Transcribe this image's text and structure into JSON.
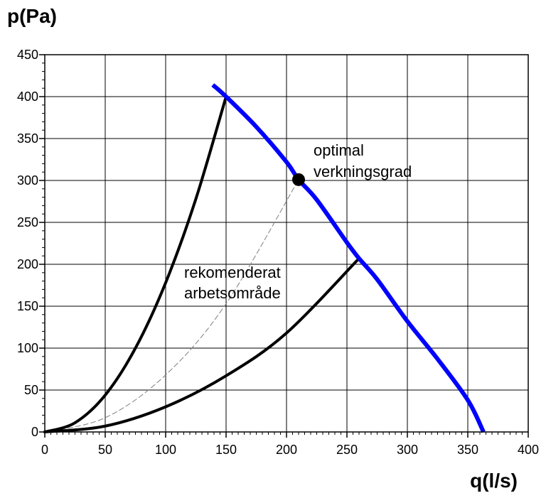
{
  "chart_data": {
    "type": "line",
    "title": "",
    "xlabel": "q(l/s)",
    "ylabel": "p(Pa)",
    "xlim": [
      0,
      400
    ],
    "ylim": [
      0,
      450
    ],
    "x_ticks": [
      0,
      50,
      100,
      150,
      200,
      250,
      300,
      350,
      400
    ],
    "y_ticks": [
      0,
      50,
      100,
      150,
      200,
      250,
      300,
      350,
      400,
      450
    ],
    "grid": true,
    "series": [
      {
        "role": "fan-curve",
        "color": "#0000ff",
        "x": [
          139,
          150,
          175,
          200,
          210,
          225,
          250,
          260,
          275,
          300,
          325,
          350,
          363
        ],
        "y": [
          414,
          400,
          364,
          322,
          301,
          277,
          226,
          207,
          182,
          132,
          87,
          38,
          0
        ]
      },
      {
        "role": "system-curve-upper-limit",
        "color": "#000000",
        "x": [
          0,
          25,
          50,
          75,
          100,
          125,
          150
        ],
        "y": [
          0,
          11,
          44,
          100,
          178,
          278,
          400
        ]
      },
      {
        "role": "system-curve-lower-limit",
        "color": "#000000",
        "x": [
          0,
          50,
          100,
          150,
          200,
          260
        ],
        "y": [
          0,
          7,
          30,
          67,
          118,
          207
        ]
      },
      {
        "role": "system-curve-optimal",
        "color": "#7f7f7f",
        "dashed": true,
        "x": [
          0,
          50,
          100,
          150,
          210
        ],
        "y": [
          0,
          17,
          68,
          153,
          301
        ]
      }
    ],
    "points": [
      {
        "label": "optimal verkningsgrad",
        "x": 210,
        "y": 301
      }
    ],
    "annotations": [
      {
        "lines": [
          "optimal",
          "verkningsgrad"
        ]
      },
      {
        "lines": [
          "rekomenderat",
          "arbetsområde"
        ]
      }
    ]
  }
}
